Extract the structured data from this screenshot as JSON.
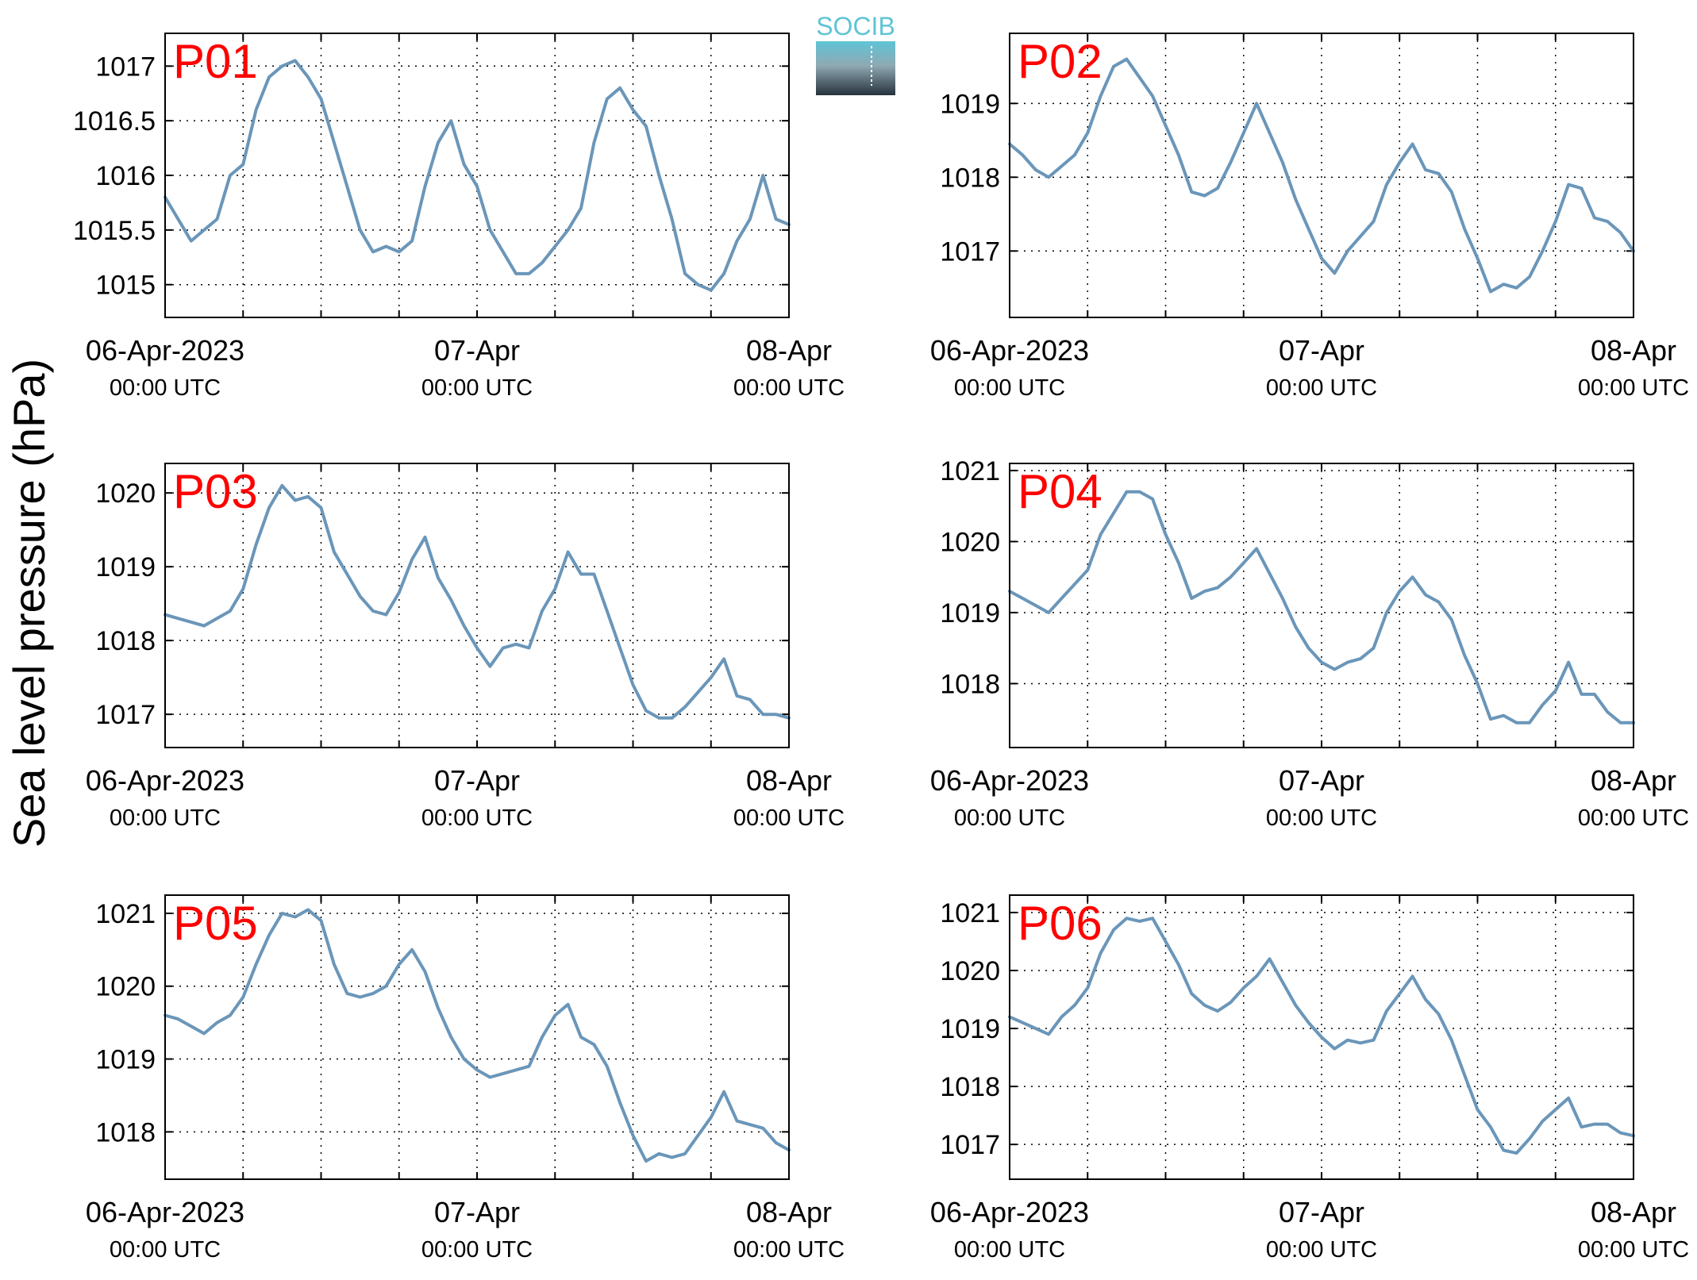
{
  "figure": {
    "ylabel": "Sea level pressure (hPa)",
    "logo_text": "SOCIB"
  },
  "colors": {
    "series": "#6a96b9",
    "panel_label": "#ff0000",
    "logo_top": "#5ec4d6",
    "logo_bottom": "#26323c"
  },
  "chart_data": [
    {
      "type": "line",
      "panel": "P01",
      "x_range_hours": [
        0,
        48
      ],
      "x_ticks": [
        {
          "hour": 0,
          "label": "06-Apr-2023",
          "sublabel": "00:00 UTC"
        },
        {
          "hour": 24,
          "label": "07-Apr",
          "sublabel": "00:00 UTC"
        },
        {
          "hour": 48,
          "label": "08-Apr",
          "sublabel": "00:00 UTC"
        }
      ],
      "grid_hours": [
        6,
        12,
        18,
        24,
        30,
        36,
        42
      ],
      "ylim": [
        1014.7,
        1017.3
      ],
      "y_ticks": [
        1015,
        1015.5,
        1016,
        1016.5,
        1017
      ],
      "y_tick_labels": [
        "1015",
        "1015.5",
        "1016",
        "1016.5",
        "1017"
      ],
      "series": [
        {
          "x": [
            0,
            1,
            2,
            3,
            4,
            5,
            6,
            7,
            8,
            9,
            10,
            11,
            12,
            13,
            14,
            15,
            16,
            17,
            18,
            19,
            20,
            21,
            22,
            23,
            24,
            25,
            26,
            27,
            28,
            29,
            30,
            31,
            32,
            33,
            34,
            35,
            36,
            37,
            38,
            39,
            40,
            41,
            42,
            43,
            44,
            45,
            46,
            47,
            48
          ],
          "values": [
            1015.8,
            1015.6,
            1015.4,
            1015.5,
            1015.6,
            1016.0,
            1016.1,
            1016.6,
            1016.9,
            1017.0,
            1017.05,
            1016.9,
            1016.7,
            1016.3,
            1015.9,
            1015.5,
            1015.3,
            1015.35,
            1015.3,
            1015.4,
            1015.9,
            1016.3,
            1016.5,
            1016.1,
            1015.9,
            1015.5,
            1015.3,
            1015.1,
            1015.1,
            1015.2,
            1015.35,
            1015.5,
            1015.7,
            1016.3,
            1016.7,
            1016.8,
            1016.6,
            1016.45,
            1016.0,
            1015.6,
            1015.1,
            1015.0,
            1014.95,
            1015.1,
            1015.4,
            1015.6,
            1016.0,
            1015.6,
            1015.55
          ]
        }
      ]
    },
    {
      "type": "line",
      "panel": "P02",
      "x_range_hours": [
        0,
        48
      ],
      "x_ticks": [
        {
          "hour": 0,
          "label": "06-Apr-2023",
          "sublabel": "00:00 UTC"
        },
        {
          "hour": 24,
          "label": "07-Apr",
          "sublabel": "00:00 UTC"
        },
        {
          "hour": 48,
          "label": "08-Apr",
          "sublabel": "00:00 UTC"
        }
      ],
      "grid_hours": [
        6,
        12,
        18,
        24,
        30,
        36,
        42
      ],
      "ylim": [
        1016.1,
        1019.95
      ],
      "y_ticks": [
        1017,
        1018,
        1019
      ],
      "y_tick_labels": [
        "1017",
        "1018",
        "1019"
      ],
      "series": [
        {
          "x": [
            0,
            1,
            2,
            3,
            4,
            5,
            6,
            7,
            8,
            9,
            10,
            11,
            12,
            13,
            14,
            15,
            16,
            17,
            18,
            19,
            20,
            21,
            22,
            23,
            24,
            25,
            26,
            27,
            28,
            29,
            30,
            31,
            32,
            33,
            34,
            35,
            36,
            37,
            38,
            39,
            40,
            41,
            42,
            43,
            44,
            45,
            46,
            47,
            48
          ],
          "values": [
            1018.45,
            1018.3,
            1018.1,
            1018.0,
            1018.15,
            1018.3,
            1018.6,
            1019.1,
            1019.5,
            1019.6,
            1019.35,
            1019.1,
            1018.7,
            1018.3,
            1017.8,
            1017.75,
            1017.85,
            1018.2,
            1018.6,
            1019.0,
            1018.6,
            1018.2,
            1017.7,
            1017.3,
            1016.9,
            1016.7,
            1017.0,
            1017.2,
            1017.4,
            1017.9,
            1018.2,
            1018.45,
            1018.1,
            1018.05,
            1017.8,
            1017.3,
            1016.9,
            1016.45,
            1016.55,
            1016.5,
            1016.65,
            1017.0,
            1017.4,
            1017.9,
            1017.85,
            1017.45,
            1017.4,
            1017.25,
            1017.0
          ]
        }
      ]
    },
    {
      "type": "line",
      "panel": "P03",
      "x_range_hours": [
        0,
        48
      ],
      "x_ticks": [
        {
          "hour": 0,
          "label": "06-Apr-2023",
          "sublabel": "00:00 UTC"
        },
        {
          "hour": 24,
          "label": "07-Apr",
          "sublabel": "00:00 UTC"
        },
        {
          "hour": 48,
          "label": "08-Apr",
          "sublabel": "00:00 UTC"
        }
      ],
      "grid_hours": [
        6,
        12,
        18,
        24,
        30,
        36,
        42
      ],
      "ylim": [
        1016.55,
        1020.4
      ],
      "y_ticks": [
        1017,
        1018,
        1019,
        1020
      ],
      "y_tick_labels": [
        "1017",
        "1018",
        "1019",
        "1020"
      ],
      "series": [
        {
          "x": [
            0,
            1,
            2,
            3,
            4,
            5,
            6,
            7,
            8,
            9,
            10,
            11,
            12,
            13,
            14,
            15,
            16,
            17,
            18,
            19,
            20,
            21,
            22,
            23,
            24,
            25,
            26,
            27,
            28,
            29,
            30,
            31,
            32,
            33,
            34,
            35,
            36,
            37,
            38,
            39,
            40,
            41,
            42,
            43,
            44,
            45,
            46,
            47,
            48
          ],
          "values": [
            1018.35,
            1018.3,
            1018.25,
            1018.2,
            1018.3,
            1018.4,
            1018.7,
            1019.3,
            1019.8,
            1020.1,
            1019.9,
            1019.95,
            1019.8,
            1019.2,
            1018.9,
            1018.6,
            1018.4,
            1018.35,
            1018.65,
            1019.1,
            1019.4,
            1018.85,
            1018.55,
            1018.2,
            1017.9,
            1017.65,
            1017.9,
            1017.95,
            1017.9,
            1018.4,
            1018.7,
            1019.2,
            1018.9,
            1018.9,
            1018.4,
            1017.9,
            1017.4,
            1017.05,
            1016.95,
            1016.95,
            1017.1,
            1017.3,
            1017.5,
            1017.75,
            1017.25,
            1017.2,
            1017.0,
            1017.0,
            1016.95
          ]
        }
      ]
    },
    {
      "type": "line",
      "panel": "P04",
      "x_range_hours": [
        0,
        48
      ],
      "x_ticks": [
        {
          "hour": 0,
          "label": "06-Apr-2023",
          "sublabel": "00:00 UTC"
        },
        {
          "hour": 24,
          "label": "07-Apr",
          "sublabel": "00:00 UTC"
        },
        {
          "hour": 48,
          "label": "08-Apr",
          "sublabel": "00:00 UTC"
        }
      ],
      "grid_hours": [
        6,
        12,
        18,
        24,
        30,
        36,
        42
      ],
      "ylim": [
        1017.1,
        1021.1
      ],
      "y_ticks": [
        1018,
        1019,
        1020,
        1021
      ],
      "y_tick_labels": [
        "1018",
        "1019",
        "1020",
        "1021"
      ],
      "series": [
        {
          "x": [
            0,
            1,
            2,
            3,
            4,
            5,
            6,
            7,
            8,
            9,
            10,
            11,
            12,
            13,
            14,
            15,
            16,
            17,
            18,
            19,
            20,
            21,
            22,
            23,
            24,
            25,
            26,
            27,
            28,
            29,
            30,
            31,
            32,
            33,
            34,
            35,
            36,
            37,
            38,
            39,
            40,
            41,
            42,
            43,
            44,
            45,
            46,
            47,
            48
          ],
          "values": [
            1019.3,
            1019.2,
            1019.1,
            1019.0,
            1019.2,
            1019.4,
            1019.6,
            1020.1,
            1020.4,
            1020.7,
            1020.7,
            1020.6,
            1020.1,
            1019.7,
            1019.2,
            1019.3,
            1019.35,
            1019.5,
            1019.7,
            1019.9,
            1019.55,
            1019.2,
            1018.8,
            1018.5,
            1018.3,
            1018.2,
            1018.3,
            1018.35,
            1018.5,
            1019.0,
            1019.3,
            1019.5,
            1019.25,
            1019.15,
            1018.9,
            1018.4,
            1018.0,
            1017.5,
            1017.55,
            1017.45,
            1017.45,
            1017.7,
            1017.9,
            1018.3,
            1017.85,
            1017.85,
            1017.6,
            1017.45,
            1017.45
          ]
        }
      ]
    },
    {
      "type": "line",
      "panel": "P05",
      "x_range_hours": [
        0,
        48
      ],
      "x_ticks": [
        {
          "hour": 0,
          "label": "06-Apr-2023",
          "sublabel": "00:00 UTC"
        },
        {
          "hour": 24,
          "label": "07-Apr",
          "sublabel": "00:00 UTC"
        },
        {
          "hour": 48,
          "label": "08-Apr",
          "sublabel": "00:00 UTC"
        }
      ],
      "grid_hours": [
        6,
        12,
        18,
        24,
        30,
        36,
        42
      ],
      "ylim": [
        1017.35,
        1021.25
      ],
      "y_ticks": [
        1018,
        1019,
        1020,
        1021
      ],
      "y_tick_labels": [
        "1018",
        "1019",
        "1020",
        "1021"
      ],
      "series": [
        {
          "x": [
            0,
            1,
            2,
            3,
            4,
            5,
            6,
            7,
            8,
            9,
            10,
            11,
            12,
            13,
            14,
            15,
            16,
            17,
            18,
            19,
            20,
            21,
            22,
            23,
            24,
            25,
            26,
            27,
            28,
            29,
            30,
            31,
            32,
            33,
            34,
            35,
            36,
            37,
            38,
            39,
            40,
            41,
            42,
            43,
            44,
            45,
            46,
            47,
            48
          ],
          "values": [
            1019.6,
            1019.55,
            1019.45,
            1019.35,
            1019.5,
            1019.6,
            1019.85,
            1020.3,
            1020.7,
            1021.0,
            1020.95,
            1021.05,
            1020.9,
            1020.3,
            1019.9,
            1019.85,
            1019.9,
            1020.0,
            1020.3,
            1020.5,
            1020.2,
            1019.7,
            1019.3,
            1019.0,
            1018.85,
            1018.75,
            1018.8,
            1018.85,
            1018.9,
            1019.3,
            1019.6,
            1019.75,
            1019.3,
            1019.2,
            1018.9,
            1018.4,
            1017.95,
            1017.6,
            1017.7,
            1017.65,
            1017.7,
            1017.95,
            1018.2,
            1018.55,
            1018.15,
            1018.1,
            1018.05,
            1017.85,
            1017.75
          ]
        }
      ]
    },
    {
      "type": "line",
      "panel": "P06",
      "x_range_hours": [
        0,
        48
      ],
      "x_ticks": [
        {
          "hour": 0,
          "label": "06-Apr-2023",
          "sublabel": "00:00 UTC"
        },
        {
          "hour": 24,
          "label": "07-Apr",
          "sublabel": "00:00 UTC"
        },
        {
          "hour": 48,
          "label": "08-Apr",
          "sublabel": "00:00 UTC"
        }
      ],
      "grid_hours": [
        6,
        12,
        18,
        24,
        30,
        36,
        42
      ],
      "ylim": [
        1016.4,
        1021.3
      ],
      "y_ticks": [
        1017,
        1018,
        1019,
        1020,
        1021
      ],
      "y_tick_labels": [
        "1017",
        "1018",
        "1019",
        "1020",
        "1021"
      ],
      "series": [
        {
          "x": [
            0,
            1,
            2,
            3,
            4,
            5,
            6,
            7,
            8,
            9,
            10,
            11,
            12,
            13,
            14,
            15,
            16,
            17,
            18,
            19,
            20,
            21,
            22,
            23,
            24,
            25,
            26,
            27,
            28,
            29,
            30,
            31,
            32,
            33,
            34,
            35,
            36,
            37,
            38,
            39,
            40,
            41,
            42,
            43,
            44,
            45,
            46,
            47,
            48
          ],
          "values": [
            1019.2,
            1019.1,
            1019.0,
            1018.9,
            1019.2,
            1019.4,
            1019.7,
            1020.3,
            1020.7,
            1020.9,
            1020.85,
            1020.9,
            1020.5,
            1020.1,
            1019.6,
            1019.4,
            1019.3,
            1019.45,
            1019.7,
            1019.9,
            1020.2,
            1019.8,
            1019.4,
            1019.1,
            1018.85,
            1018.65,
            1018.8,
            1018.75,
            1018.8,
            1019.3,
            1019.6,
            1019.9,
            1019.5,
            1019.25,
            1018.8,
            1018.2,
            1017.6,
            1017.3,
            1016.9,
            1016.85,
            1017.1,
            1017.4,
            1017.6,
            1017.8,
            1017.3,
            1017.35,
            1017.35,
            1017.2,
            1017.15
          ]
        }
      ]
    }
  ]
}
